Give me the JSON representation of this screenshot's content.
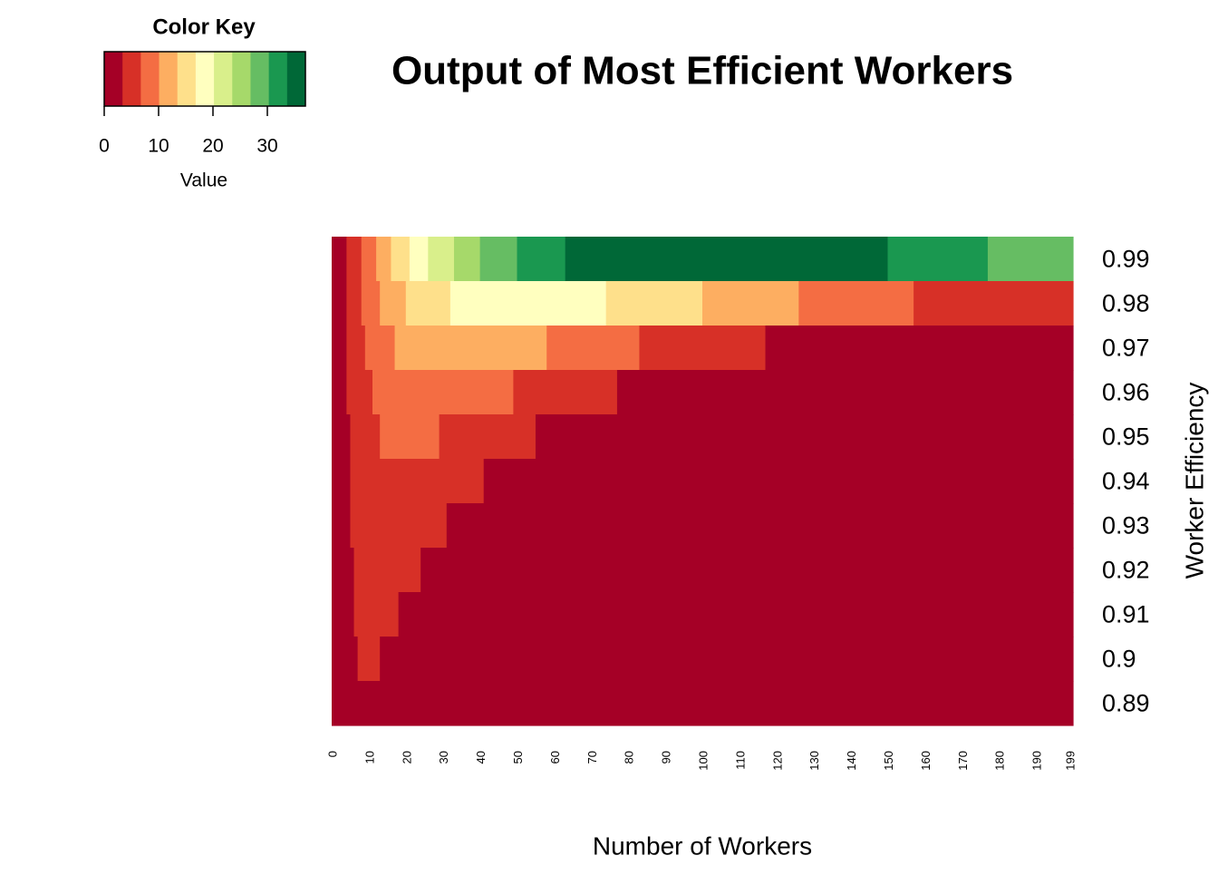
{
  "chart_data": {
    "type": "heatmap",
    "title": "Output of Most Efficient Workers",
    "xlabel": "Number of Workers",
    "ylabel": "Worker Efficiency",
    "xlim": [
      0,
      200
    ],
    "xticks": [
      0,
      10,
      20,
      30,
      40,
      50,
      60,
      70,
      80,
      90,
      100,
      110,
      120,
      130,
      140,
      150,
      160,
      170,
      180,
      190,
      199
    ],
    "series": [
      {
        "name": "0.99",
        "bins": [
          0,
          4,
          8,
          12,
          16,
          21,
          26,
          33,
          40,
          50,
          63,
          150,
          177,
          200
        ],
        "values": [
          1.7,
          5,
          8.4,
          11.8,
          15.1,
          18.5,
          21.9,
          25.2,
          28.6,
          31.9,
          35.3,
          31.9,
          28.6
        ]
      },
      {
        "name": "0.98",
        "bins": [
          0,
          4,
          8,
          13,
          20,
          32,
          74,
          100,
          126,
          157,
          200
        ],
        "values": [
          1.7,
          5,
          8.4,
          11.8,
          15.1,
          18.5,
          15.1,
          11.8,
          8.4,
          5
        ]
      },
      {
        "name": "0.97",
        "bins": [
          0,
          4,
          9,
          17,
          58,
          83,
          117,
          200
        ],
        "values": [
          1.7,
          5,
          8.4,
          11.8,
          8.4,
          5,
          1.7
        ]
      },
      {
        "name": "0.96",
        "bins": [
          0,
          4,
          11,
          49,
          77,
          200
        ],
        "values": [
          1.7,
          5,
          8.4,
          5,
          1.7
        ]
      },
      {
        "name": "0.95",
        "bins": [
          0,
          5,
          13,
          29,
          55,
          200
        ],
        "values": [
          1.7,
          5,
          8.4,
          5,
          1.7
        ]
      },
      {
        "name": "0.94",
        "bins": [
          0,
          5,
          41,
          200
        ],
        "values": [
          1.7,
          5,
          1.7
        ]
      },
      {
        "name": "0.93",
        "bins": [
          0,
          5,
          31,
          200
        ],
        "values": [
          1.7,
          5,
          1.7
        ]
      },
      {
        "name": "0.92",
        "bins": [
          0,
          6,
          24,
          200
        ],
        "values": [
          1.7,
          5,
          1.7
        ]
      },
      {
        "name": "0.91",
        "bins": [
          0,
          6,
          18,
          200
        ],
        "values": [
          1.7,
          5,
          1.7
        ]
      },
      {
        "name": "0.9",
        "bins": [
          0,
          7,
          13,
          200
        ],
        "values": [
          1.7,
          5,
          1.7
        ]
      },
      {
        "name": "0.89",
        "bins": [
          0,
          200
        ],
        "values": [
          1.7
        ]
      }
    ],
    "color_key": {
      "title": "Color Key",
      "xlabel": "Value",
      "lim": [
        0,
        37
      ],
      "ticks": [
        0,
        10,
        20,
        30
      ],
      "colors": [
        "#a50026",
        "#d73027",
        "#f46d43",
        "#fdae61",
        "#fee08b",
        "#ffffbf",
        "#d9ef8b",
        "#a6d96a",
        "#66bd63",
        "#1a9850",
        "#006837"
      ]
    }
  }
}
